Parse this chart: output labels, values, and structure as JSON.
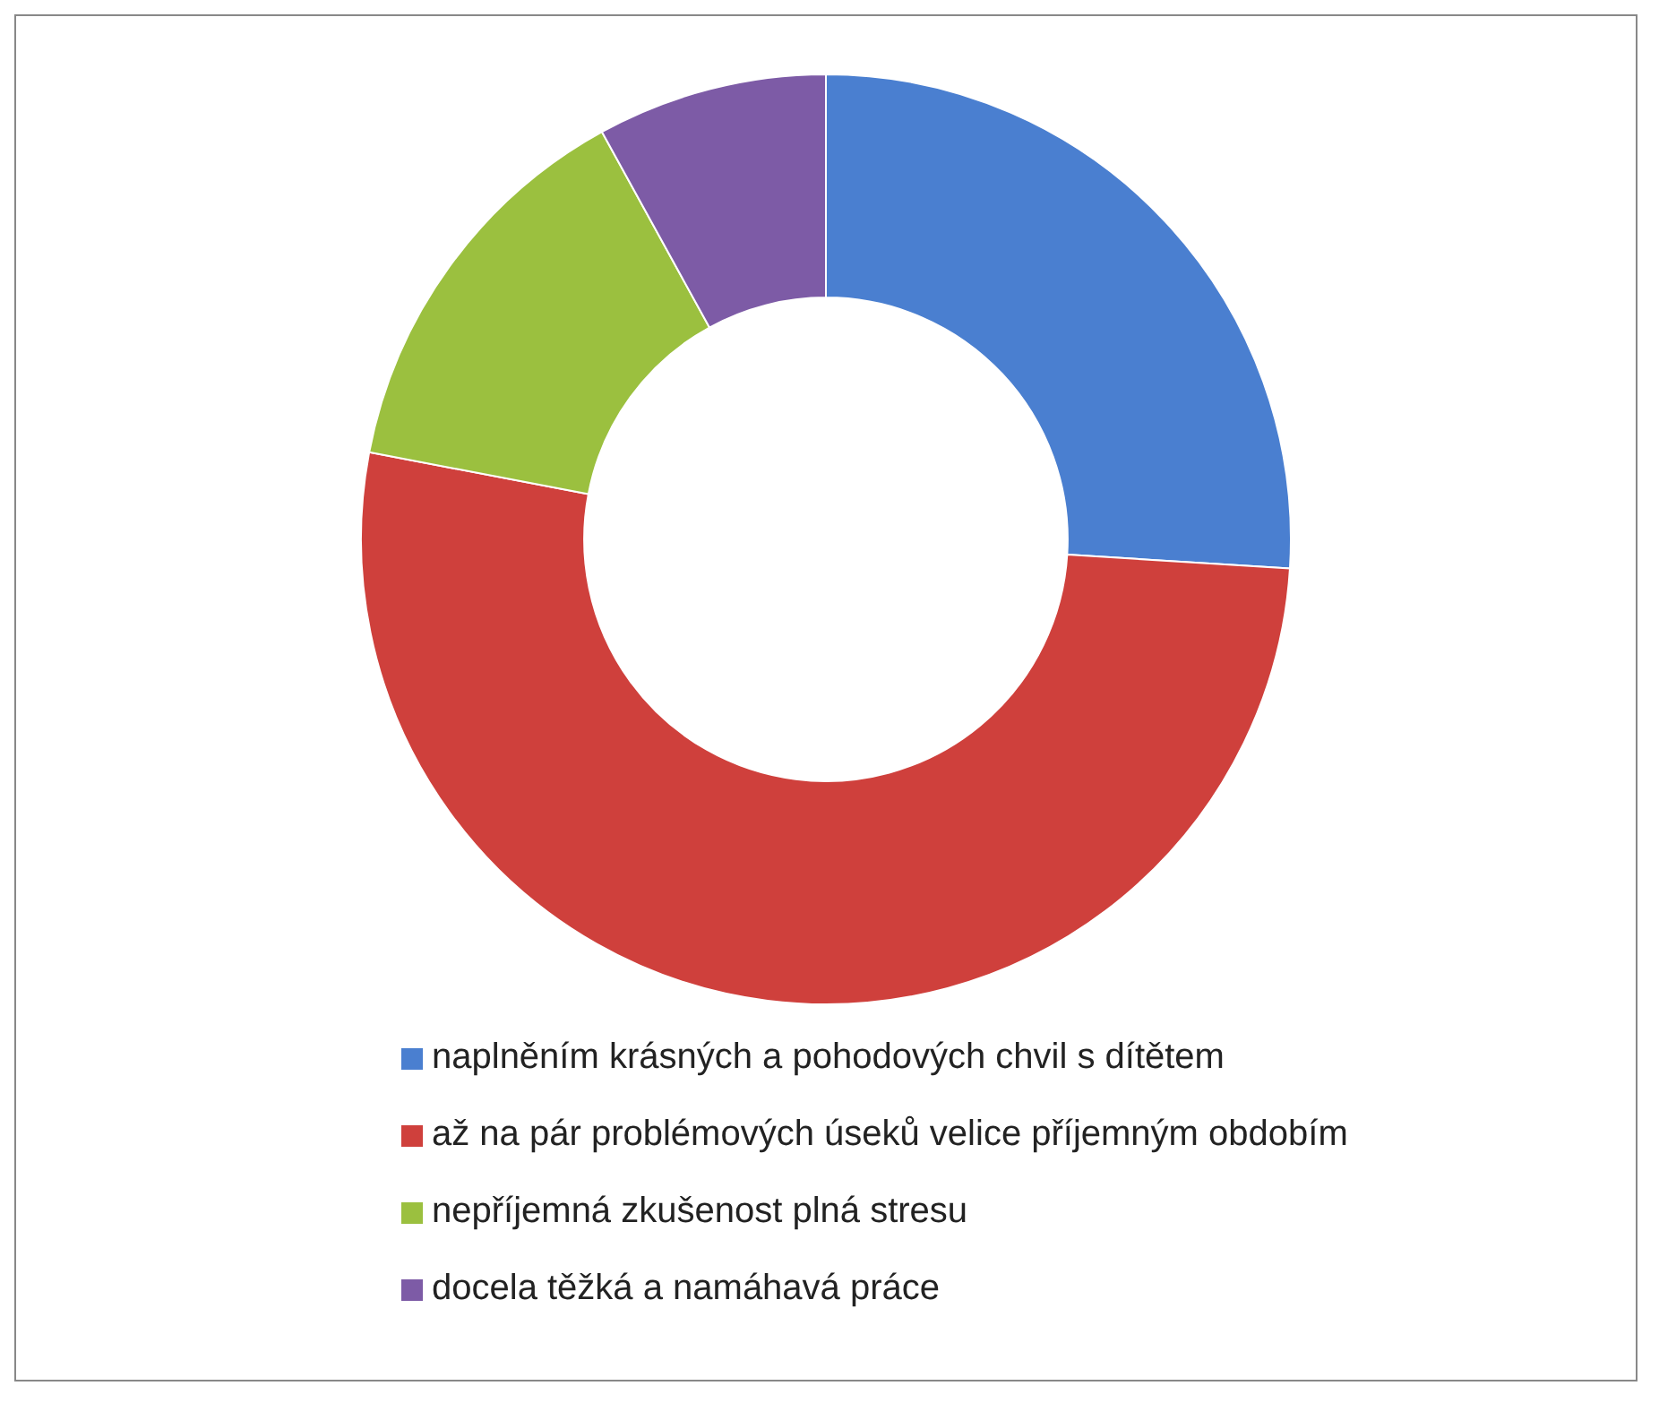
{
  "chart_data": {
    "type": "donut",
    "categories": [
      "naplněním krásných a pohodových chvil s dítětem",
      "až na pár problémových úseků velice příjemným obdobím",
      "nepříjemná zkušenost plná stresu",
      "docela těžká a namáhavá práce"
    ],
    "values": [
      26,
      52,
      14,
      8
    ],
    "colors": [
      "#4a7fd0",
      "#cf403c",
      "#9bc03f",
      "#7d5ba6"
    ],
    "legend": "bottom"
  }
}
